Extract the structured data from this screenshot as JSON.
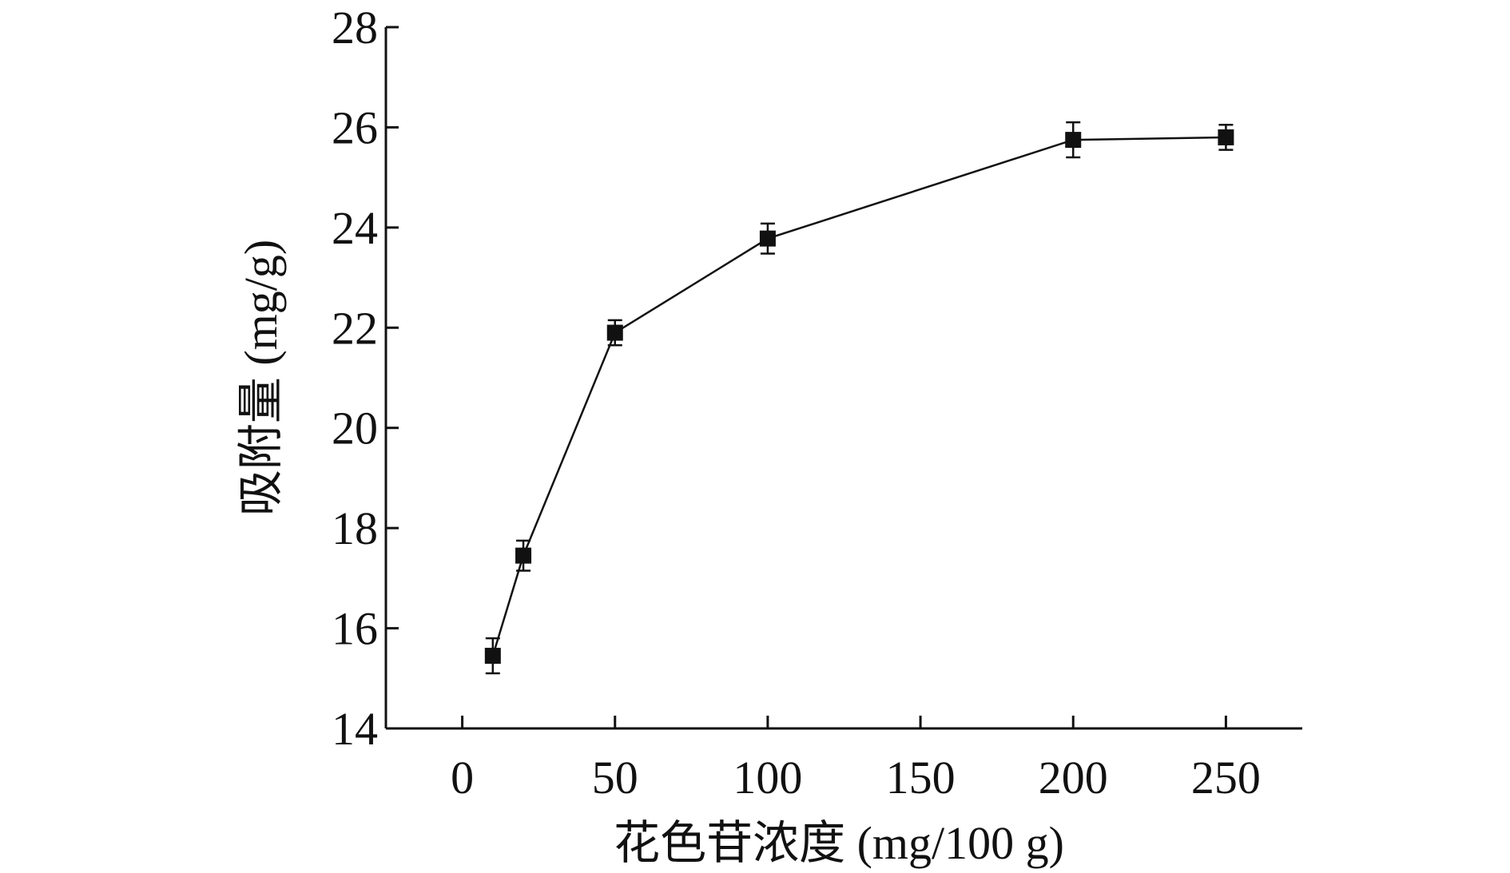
{
  "chart_data": {
    "type": "line",
    "title": "",
    "xlabel": "花色苷浓度 (mg/100 g)",
    "ylabel": "吸附量 (mg/g)",
    "xlim": [
      -25,
      275
    ],
    "ylim": [
      14,
      28
    ],
    "x_ticks": [
      0,
      50,
      100,
      150,
      200,
      250
    ],
    "y_ticks": [
      14,
      16,
      18,
      20,
      22,
      24,
      26,
      28
    ],
    "grid": false,
    "legend": "none",
    "marker": "square",
    "color": "#111111",
    "series": [
      {
        "x": [
          10,
          20,
          50,
          100,
          200,
          250
        ],
        "y": [
          15.45,
          17.45,
          21.9,
          23.78,
          25.75,
          25.8
        ],
        "error": [
          0.35,
          0.3,
          0.25,
          0.3,
          0.35,
          0.25
        ]
      }
    ]
  }
}
